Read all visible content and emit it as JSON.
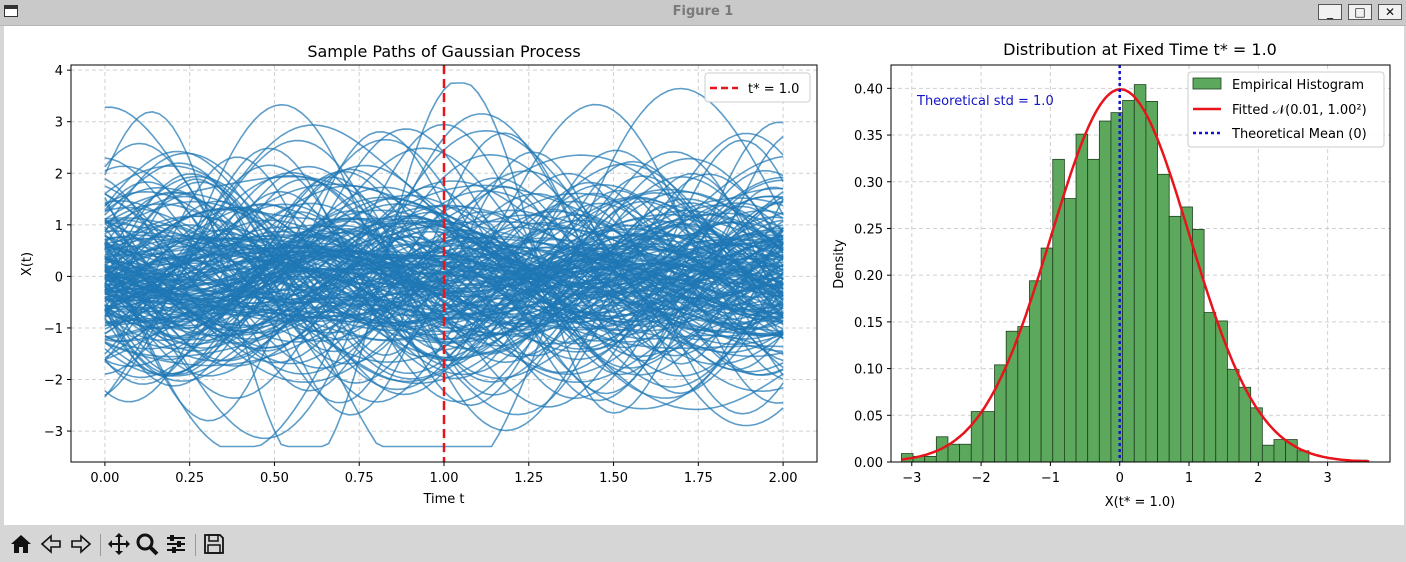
{
  "window": {
    "title": "Figure 1",
    "minimize_label": "_",
    "maximize_label": "□",
    "close_label": "✕"
  },
  "toolbar": {
    "icons": [
      "home-icon",
      "back-icon",
      "forward-icon",
      "pan-icon",
      "zoom-icon",
      "configure-icon",
      "save-icon"
    ]
  },
  "chart_data": [
    {
      "type": "line",
      "title": "Sample Paths of Gaussian Process",
      "xlabel": "Time t",
      "ylabel": "X(t)",
      "xlim": [
        -0.1,
        2.1
      ],
      "ylim": [
        -3.6,
        4.1
      ],
      "xticks": [
        "0.00",
        "0.25",
        "0.50",
        "0.75",
        "1.00",
        "1.25",
        "1.50",
        "1.75",
        "2.00"
      ],
      "yticks": [
        "−3",
        "−2",
        "−1",
        "0",
        "1",
        "2",
        "3",
        "4"
      ],
      "grid": true,
      "legend": {
        "placement": "top-right",
        "entries": [
          "t* = 1.0"
        ]
      },
      "color": "#1f77b4",
      "marker_color": "#e8141b",
      "vline_x": 1.0,
      "series_count": 200,
      "x_range": [
        0,
        2
      ]
    },
    {
      "type": "bar",
      "title": "Distribution at Fixed Time t* = 1.0",
      "xlabel": "X(t* = 1.0)",
      "ylabel": "Density",
      "xlim": [
        -3.3,
        3.9
      ],
      "ylim": [
        0,
        0.425
      ],
      "xticks": [
        "−3",
        "−2",
        "−1",
        "0",
        "1",
        "2",
        "3"
      ],
      "yticks": [
        "0.00",
        "0.05",
        "0.10",
        "0.15",
        "0.20",
        "0.25",
        "0.30",
        "0.35",
        "0.40"
      ],
      "grid": true,
      "bin_start": -3.15,
      "bin_width": 0.168,
      "values": [
        0.009,
        0.006,
        0.006,
        0.027,
        0.019,
        0.019,
        0.054,
        0.054,
        0.104,
        0.14,
        0.145,
        0.194,
        0.229,
        0.324,
        0.282,
        0.351,
        0.324,
        0.365,
        0.374,
        0.387,
        0.404,
        0.386,
        0.308,
        0.263,
        0.273,
        0.249,
        0.16,
        0.151,
        0.099,
        0.08,
        0.058,
        0.018,
        0.024,
        0.024,
        0.012,
        0.0,
        0.0,
        0.0,
        0.0,
        0.002,
        0.0
      ],
      "fit": {
        "mean": 0.01,
        "std": 1.0,
        "label": "Fitted 𝒩(0.01, 1.00²)",
        "color": "#e8141b"
      },
      "mean_line": {
        "x": 0,
        "label": "Theoretical Mean (0)",
        "color": "#1414d6"
      },
      "histogram_label": "Empirical Histogram",
      "bar_color": "#5ca85c",
      "annotation": "Theoretical std = 1.0",
      "annotation_color": "#1414c8",
      "legend": {
        "placement": "top-right"
      }
    }
  ]
}
